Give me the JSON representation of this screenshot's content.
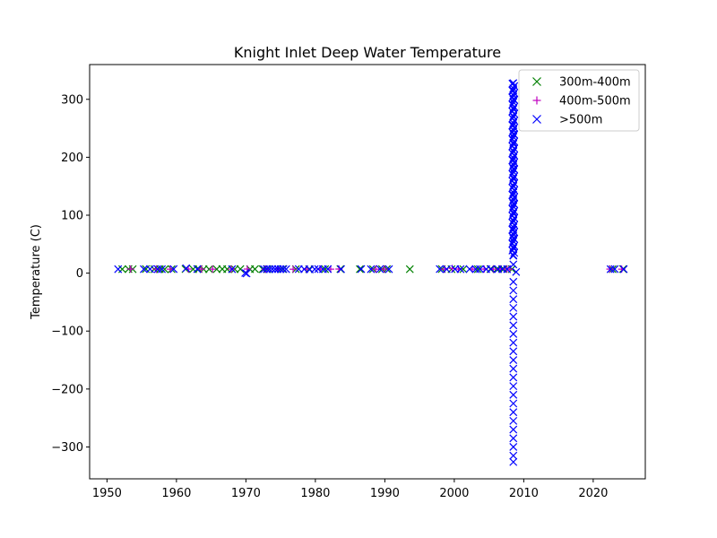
{
  "chart_data": {
    "type": "scatter",
    "title": "Knight Inlet Deep Water Temperature",
    "xlabel": "",
    "ylabel": "Temperature (C)",
    "xlim": [
      1947.5,
      2027.5
    ],
    "ylim": [
      -355,
      360
    ],
    "xticks": [
      1950,
      1960,
      1970,
      1980,
      1990,
      2000,
      2010,
      2020
    ],
    "yticks": [
      -300,
      -200,
      -100,
      0,
      100,
      200,
      300
    ],
    "grid": false,
    "legend_position": "top-right",
    "series": [
      {
        "name": "300m-400m",
        "marker": "x",
        "color": "#008000",
        "points": [
          [
            1952.2,
            6.8
          ],
          [
            1953.1,
            7.0
          ],
          [
            1953.7,
            6.9
          ],
          [
            1955.6,
            7.0
          ],
          [
            1956.8,
            6.9
          ],
          [
            1957.6,
            6.8
          ],
          [
            1958.3,
            6.7
          ],
          [
            1959.3,
            6.9
          ],
          [
            1961.3,
            7.1
          ],
          [
            1962.4,
            6.8
          ],
          [
            1963.2,
            7.0
          ],
          [
            1963.9,
            6.9
          ],
          [
            1964.7,
            6.8
          ],
          [
            1965.8,
            6.9
          ],
          [
            1966.6,
            7.0
          ],
          [
            1967.3,
            6.8
          ],
          [
            1968.4,
            6.9
          ],
          [
            1969.2,
            7.0
          ],
          [
            1970.6,
            6.9
          ],
          [
            1971.3,
            7.1
          ],
          [
            1972.4,
            6.8
          ],
          [
            1973.1,
            6.9
          ],
          [
            1975.3,
            7.0
          ],
          [
            1977.2,
            6.9
          ],
          [
            1979.1,
            6.8
          ],
          [
            1981.4,
            6.9
          ],
          [
            1983.6,
            7.0
          ],
          [
            1986.4,
            6.9
          ],
          [
            1988.3,
            6.8
          ],
          [
            1989.6,
            6.9
          ],
          [
            1990.3,
            7.0
          ],
          [
            1993.6,
            6.9
          ],
          [
            1998.2,
            7.0
          ],
          [
            1999.6,
            6.9
          ],
          [
            2001.3,
            6.8
          ],
          [
            2003.4,
            6.9
          ],
          [
            2005.2,
            7.0
          ],
          [
            2006.1,
            6.9
          ],
          [
            2007.1,
            7.0
          ],
          [
            2008.3,
            6.9
          ],
          [
            2022.8,
            6.9
          ],
          [
            2024.3,
            7.0
          ]
        ]
      },
      {
        "name": "400m-500m",
        "marker": "+",
        "color": "#bf00bf",
        "points": [
          [
            1953.4,
            7.1
          ],
          [
            1957.1,
            7.0
          ],
          [
            1959.1,
            6.9
          ],
          [
            1961.7,
            7.1
          ],
          [
            1963.6,
            7.0
          ],
          [
            1965.2,
            6.9
          ],
          [
            1967.9,
            7.0
          ],
          [
            1970.2,
            7.1
          ],
          [
            1972.8,
            6.9
          ],
          [
            1974.6,
            7.0
          ],
          [
            1976.8,
            6.8
          ],
          [
            1978.7,
            6.9
          ],
          [
            1980.7,
            7.0
          ],
          [
            1982.2,
            6.9
          ],
          [
            1983.4,
            7.1
          ],
          [
            1988.7,
            6.9
          ],
          [
            1989.9,
            7.0
          ],
          [
            1998.6,
            6.9
          ],
          [
            1999.7,
            8.1
          ],
          [
            2000.6,
            7.0
          ],
          [
            2002.6,
            6.9
          ],
          [
            2004.3,
            7.0
          ],
          [
            2005.6,
            6.9
          ],
          [
            2006.6,
            7.0
          ],
          [
            2007.6,
            7.1
          ],
          [
            2008.0,
            6.9
          ],
          [
            2022.4,
            7.0
          ],
          [
            2024.1,
            6.9
          ]
        ]
      },
      {
        "name": ">500m",
        "marker": "x",
        "color": "#0000ff",
        "points": [
          [
            1951.6,
            6.8
          ],
          [
            1955.3,
            6.9
          ],
          [
            1956.2,
            7.0
          ],
          [
            1957.3,
            6.8
          ],
          [
            1957.9,
            6.9
          ],
          [
            1959.6,
            7.0
          ],
          [
            1961.4,
            8.4
          ],
          [
            1963.0,
            7.0
          ],
          [
            1968.0,
            6.9
          ],
          [
            1969.9,
            0.3
          ],
          [
            1970.1,
            -0.6
          ],
          [
            1972.6,
            6.9
          ],
          [
            1973.0,
            7.0
          ],
          [
            1973.4,
            6.9
          ],
          [
            1973.8,
            7.1
          ],
          [
            1974.2,
            6.8
          ],
          [
            1974.6,
            7.0
          ],
          [
            1975.0,
            6.9
          ],
          [
            1975.4,
            7.0
          ],
          [
            1975.8,
            6.9
          ],
          [
            1977.6,
            7.0
          ],
          [
            1978.4,
            6.9
          ],
          [
            1979.2,
            6.5
          ],
          [
            1979.9,
            6.8
          ],
          [
            1980.4,
            7.0
          ],
          [
            1981.1,
            6.9
          ],
          [
            1981.8,
            7.0
          ],
          [
            1983.7,
            6.9
          ],
          [
            1986.6,
            7.0
          ],
          [
            1988.0,
            6.9
          ],
          [
            1989.3,
            7.0
          ],
          [
            1990.6,
            6.9
          ],
          [
            1997.9,
            7.0
          ],
          [
            1998.9,
            6.9
          ],
          [
            2000.1,
            7.0
          ],
          [
            2000.9,
            6.9
          ],
          [
            2002.2,
            7.0
          ],
          [
            2003.1,
            6.9
          ],
          [
            2003.7,
            7.0
          ],
          [
            2004.6,
            6.9
          ],
          [
            2005.3,
            7.0
          ],
          [
            2006.3,
            6.9
          ],
          [
            2006.9,
            7.0
          ],
          [
            2007.6,
            6.9
          ],
          [
            2008.9,
            2.0
          ],
          [
            2008.5,
            328
          ],
          [
            2008.5,
            315
          ],
          [
            2008.5,
            300
          ],
          [
            2008.5,
            285
          ],
          [
            2008.5,
            270
          ],
          [
            2008.5,
            255
          ],
          [
            2008.5,
            240
          ],
          [
            2008.5,
            225
          ],
          [
            2008.5,
            210
          ],
          [
            2008.5,
            195
          ],
          [
            2008.5,
            180
          ],
          [
            2008.5,
            165
          ],
          [
            2008.5,
            150
          ],
          [
            2008.5,
            135
          ],
          [
            2008.5,
            120
          ],
          [
            2008.5,
            105
          ],
          [
            2008.5,
            90
          ],
          [
            2008.5,
            75
          ],
          [
            2008.5,
            60
          ],
          [
            2008.5,
            45
          ],
          [
            2008.5,
            30
          ],
          [
            2008.5,
            15
          ],
          [
            2008.5,
            -15
          ],
          [
            2008.5,
            -30
          ],
          [
            2008.5,
            -45
          ],
          [
            2008.5,
            -60
          ],
          [
            2008.5,
            -75
          ],
          [
            2008.5,
            -90
          ],
          [
            2008.5,
            -105
          ],
          [
            2008.5,
            -120
          ],
          [
            2008.5,
            -135
          ],
          [
            2008.5,
            -150
          ],
          [
            2008.5,
            -165
          ],
          [
            2008.5,
            -180
          ],
          [
            2008.5,
            -195
          ],
          [
            2008.5,
            -210
          ],
          [
            2008.5,
            -225
          ],
          [
            2008.5,
            -240
          ],
          [
            2008.5,
            -255
          ],
          [
            2008.5,
            -270
          ],
          [
            2008.5,
            -285
          ],
          [
            2008.5,
            -300
          ],
          [
            2008.5,
            -315
          ],
          [
            2008.5,
            -326
          ],
          [
            2022.5,
            6.9
          ],
          [
            2023.1,
            7.0
          ],
          [
            2024.4,
            6.9
          ]
        ]
      }
    ]
  }
}
